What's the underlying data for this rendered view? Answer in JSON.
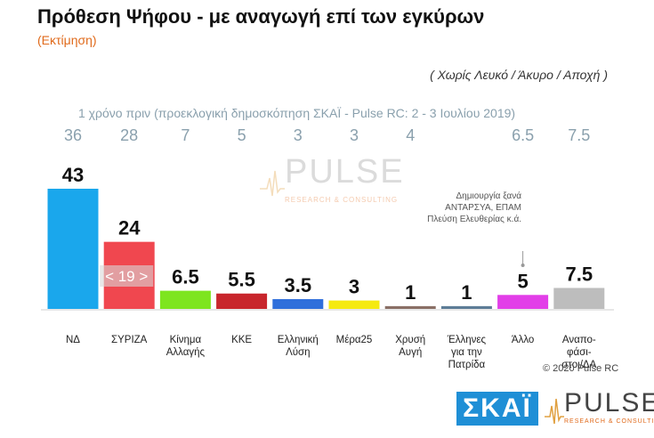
{
  "title": "Πρόθεση Ψήφου - με αναγωγή επί των εγκύρων",
  "subtitle": "(Εκτίμηση)",
  "note": "( Χωρίς Λευκό / Άκυρο / Αποχή )",
  "previous_caption": "1 χρόνο πριν (προεκλογική δημοσκόπηση ΣΚΑΪ - Pulse RC:  2 - 3 Ιουλίου 2019)",
  "copyright": "© 2020 Pulse RC",
  "annotation": "Δημιουργία ξανά ΑΝΤΑΡΣΥΑ, ΕΠΑΜ Πλεύση Ελευθερίας κ.ά.",
  "syriza_change_label": "< 19 >",
  "logos": {
    "skai": "ΣΚΑΪ",
    "pulse": "PULSE",
    "pulse_sub": "RESEARCH & CONSULTING"
  },
  "chart_data": {
    "type": "bar",
    "categories": [
      "ΝΔ",
      "ΣΥΡΙΖΑ",
      "Κίνημα Αλλαγής",
      "ΚΚΕ",
      "Ελληνική Λύση",
      "Μέρα25",
      "Χρυσή Αυγή",
      "Έλληνες για την Πατρίδα",
      "Άλλο",
      "Αναπο-φάσι-στοι/ΔΑ"
    ],
    "category_lines": [
      [
        "ΝΔ"
      ],
      [
        "ΣΥΡΙΖΑ"
      ],
      [
        "Κίνημα",
        "Αλλαγής"
      ],
      [
        "ΚΚΕ"
      ],
      [
        "Ελληνική",
        "Λύση"
      ],
      [
        "Μέρα25"
      ],
      [
        "Χρυσή",
        "Αυγή"
      ],
      [
        "Έλληνες",
        "για την",
        "Πατρίδα"
      ],
      [
        "Άλλο"
      ],
      [
        "Αναπο-",
        "φάσι-",
        "στοι/ΔΑ"
      ]
    ],
    "values": [
      43,
      24,
      6.5,
      5.5,
      3.5,
      3,
      1,
      1,
      5,
      7.5
    ],
    "value_labels": [
      "43",
      "24",
      "6.5",
      "5.5",
      "3.5",
      "3",
      "1",
      "1",
      "5",
      "7.5"
    ],
    "previous_values": [
      "36",
      "28",
      "7",
      "5",
      "3",
      "3",
      "4",
      "",
      "6.5",
      "7.5"
    ],
    "colors": [
      "#1aa7ec",
      "#f0474f",
      "#7ee51f",
      "#c8262c",
      "#2f6fdb",
      "#f5ea10",
      "#8a6f66",
      "#5d7d97",
      "#e23ee8",
      "#bdbdbd"
    ],
    "ylim": [
      0,
      45
    ],
    "grid": false
  }
}
